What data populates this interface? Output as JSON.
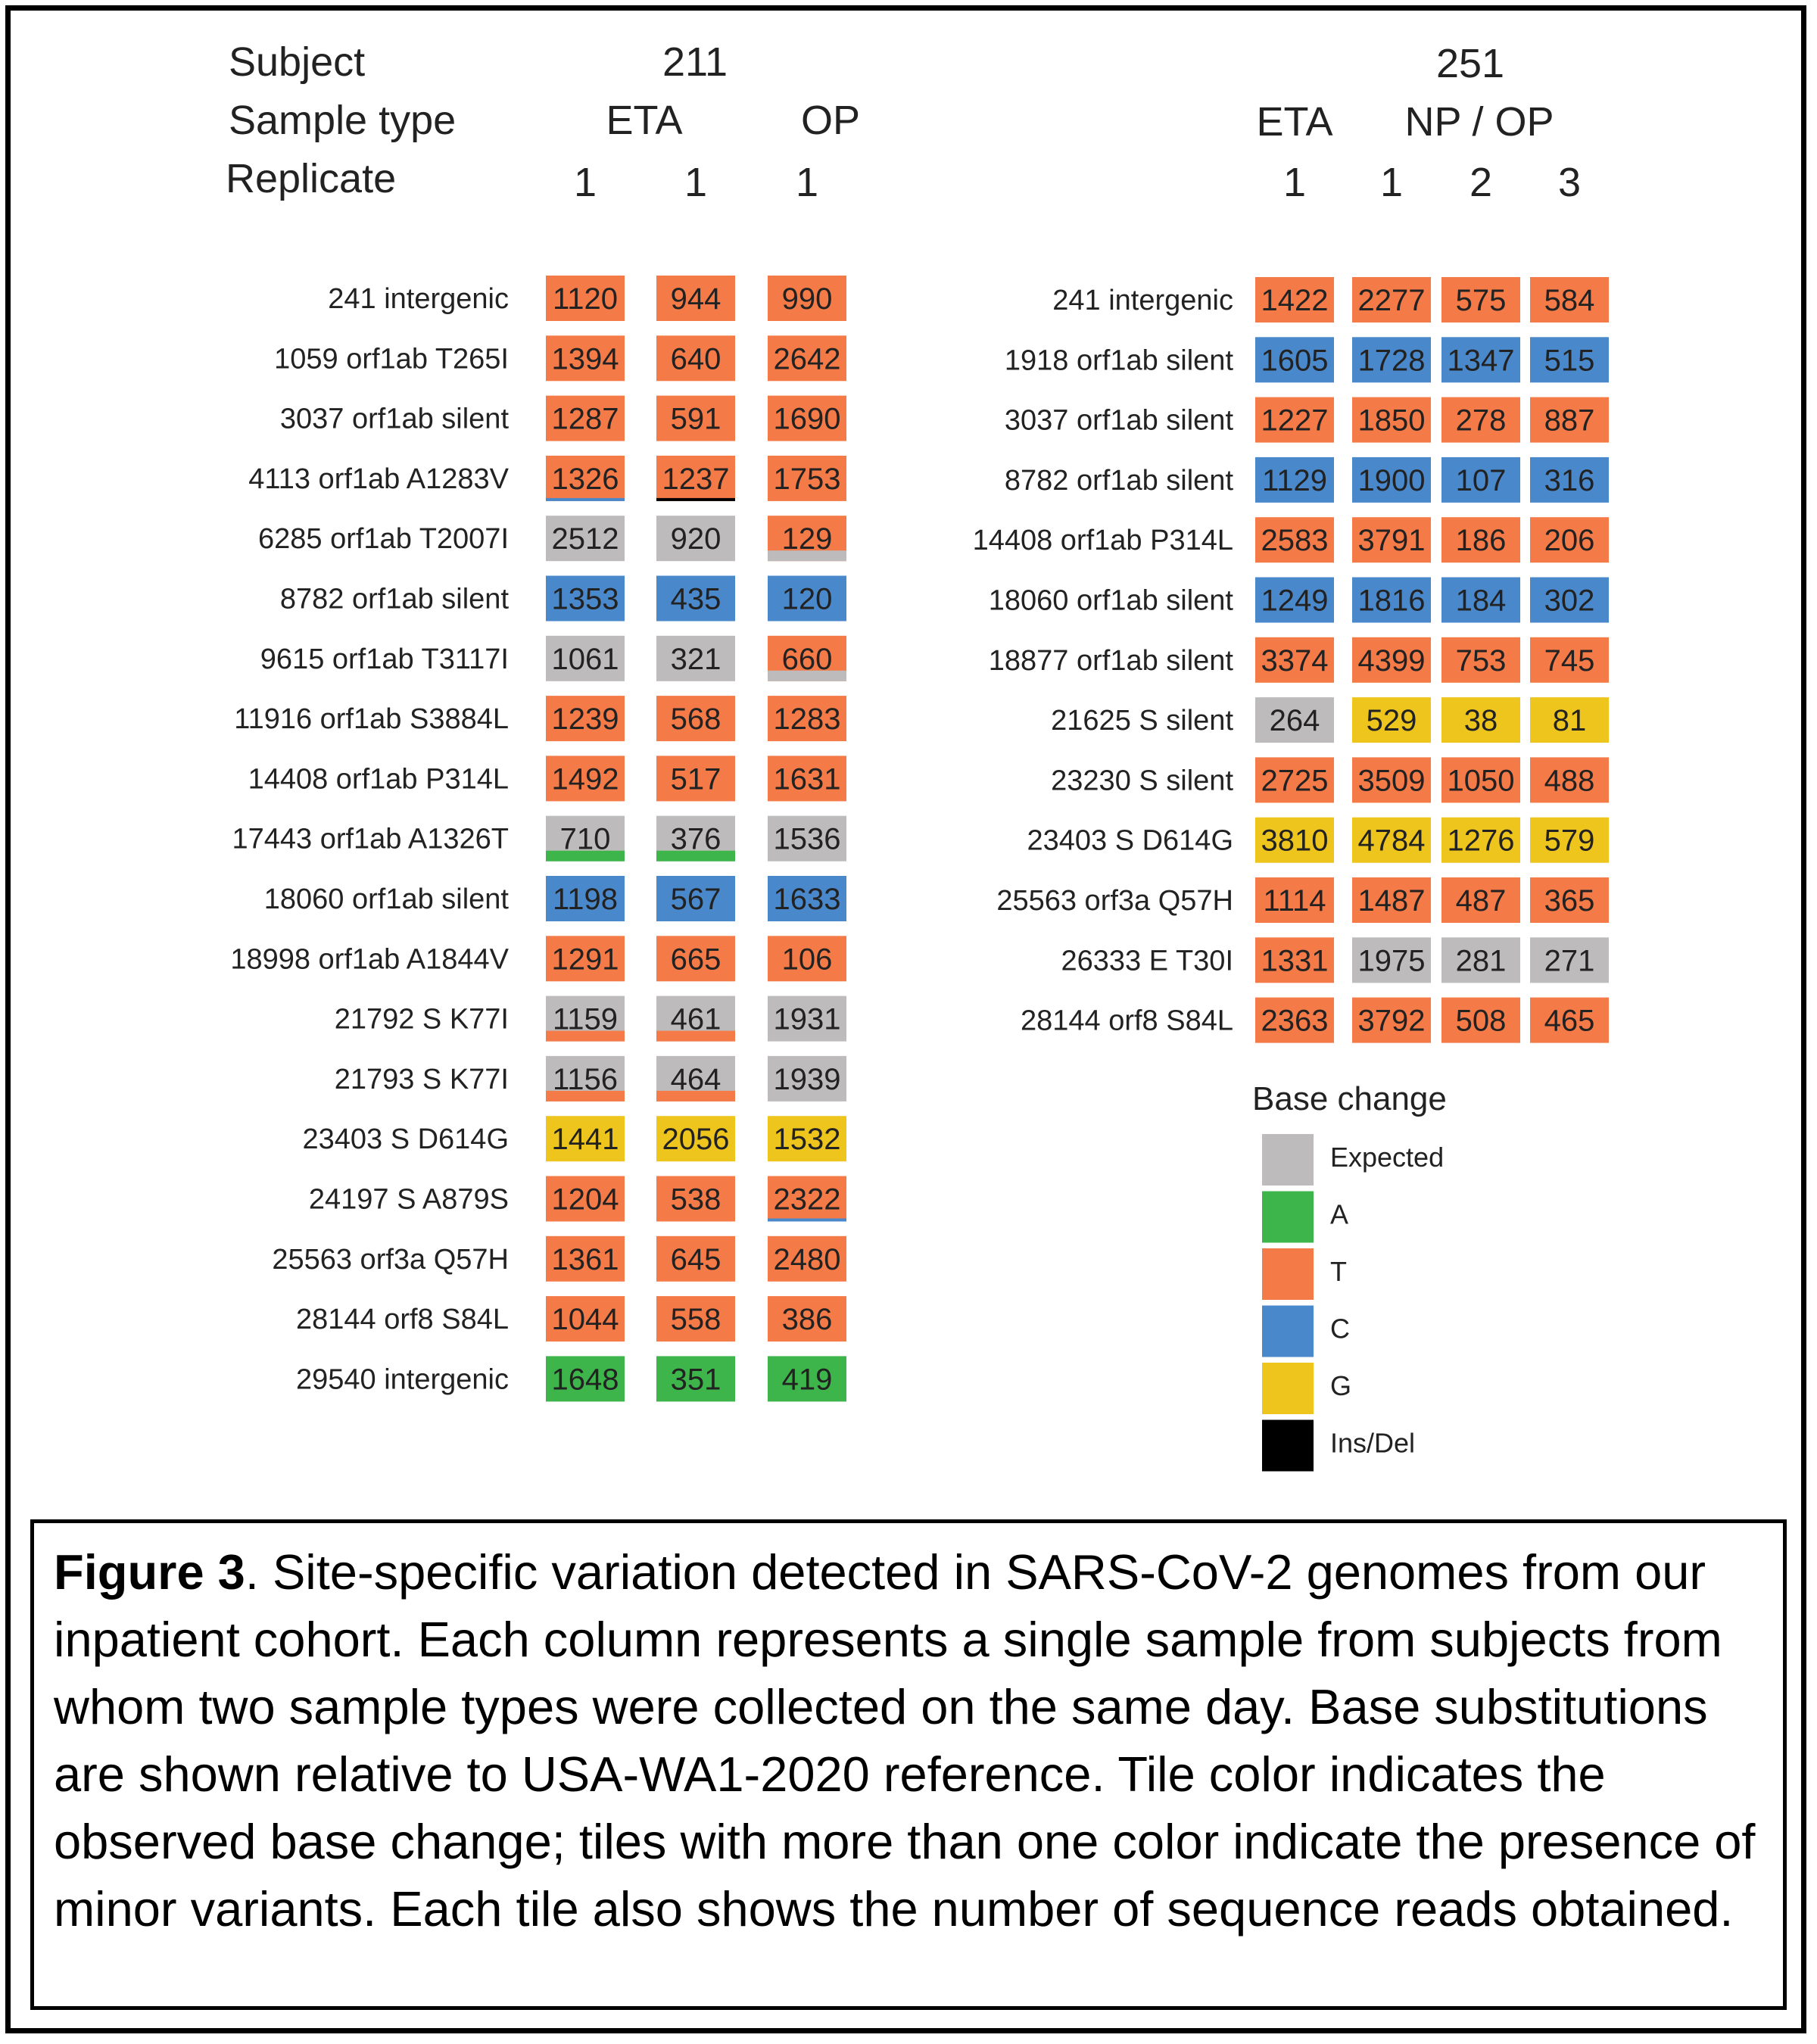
{
  "colors": {
    "Expected": "#bdbbbb",
    "A": "#3db54a",
    "T": "#f47a47",
    "C": "#4a88cc",
    "G": "#eec51c",
    "Ins/Del": "#000000"
  },
  "header_labels": {
    "subject": "Subject",
    "sample_type": "Sample type",
    "replicate": "Replicate"
  },
  "caption": {
    "figure_label": "Figure 3",
    "text": ". Site-specific variation detected in SARS-CoV-2 genomes from our inpatient cohort. Each column represents a single sample from subjects from whom two sample types were collected on the same day. Base substitutions are shown relative to USA-WA1-2020 reference. Tile color indicates the observed base change; tiles with more than one color indicate the presence of minor variants. Each tile also shows the number of sequence reads obtained."
  },
  "chart_data": {
    "type": "heatmap",
    "legend": {
      "title": "Base change",
      "entries": [
        {
          "label": "Expected",
          "color": "#bdbbbb"
        },
        {
          "label": "A",
          "color": "#3db54a"
        },
        {
          "label": "T",
          "color": "#f47a47"
        },
        {
          "label": "C",
          "color": "#4a88cc"
        },
        {
          "label": "G",
          "color": "#eec51c"
        },
        {
          "label": "Ins/Del",
          "color": "#000000"
        }
      ]
    },
    "panels": [
      {
        "subject": "211",
        "sample_types": [
          "ETA",
          "OP"
        ],
        "columns": [
          {
            "sample_type": "ETA",
            "replicate": "1"
          },
          {
            "sample_type": "ETA",
            "replicate": "1"
          },
          {
            "sample_type": "OP",
            "replicate": "1"
          }
        ],
        "rows": [
          {
            "label": "241 intergenic",
            "cells": [
              {
                "reads": "1120",
                "base": "T"
              },
              {
                "reads": "944",
                "base": "T"
              },
              {
                "reads": "990",
                "base": "T"
              }
            ]
          },
          {
            "label": "1059 orf1ab  T265I",
            "cells": [
              {
                "reads": "1394",
                "base": "T"
              },
              {
                "reads": "640",
                "base": "T"
              },
              {
                "reads": "2642",
                "base": "T"
              }
            ]
          },
          {
            "label": "3037 orf1ab  silent",
            "cells": [
              {
                "reads": "1287",
                "base": "T"
              },
              {
                "reads": "591",
                "base": "T"
              },
              {
                "reads": "1690",
                "base": "T"
              }
            ]
          },
          {
            "label": "4113 orf1ab  A1283V",
            "cells": [
              {
                "reads": "1326",
                "base": "T",
                "minor": "C"
              },
              {
                "reads": "1237",
                "base": "T",
                "minor": "Ins/Del"
              },
              {
                "reads": "1753",
                "base": "T"
              }
            ]
          },
          {
            "label": "6285 orf1ab T2007I",
            "cells": [
              {
                "reads": "2512",
                "base": "Expected"
              },
              {
                "reads": "920",
                "base": "Expected"
              },
              {
                "reads": "129",
                "base": "T",
                "minor": "Expected"
              }
            ]
          },
          {
            "label": "8782 orf1ab  silent",
            "cells": [
              {
                "reads": "1353",
                "base": "C"
              },
              {
                "reads": "435",
                "base": "C"
              },
              {
                "reads": "120",
                "base": "C"
              }
            ]
          },
          {
            "label": "9615 orf1ab T3117I",
            "cells": [
              {
                "reads": "1061",
                "base": "Expected"
              },
              {
                "reads": "321",
                "base": "Expected"
              },
              {
                "reads": "660",
                "base": "T",
                "minor": "Expected"
              }
            ]
          },
          {
            "label": "11916 orf1ab  S3884L",
            "cells": [
              {
                "reads": "1239",
                "base": "T"
              },
              {
                "reads": "568",
                "base": "T"
              },
              {
                "reads": "1283",
                "base": "T"
              }
            ]
          },
          {
            "label": "14408 orf1ab  P314L",
            "cells": [
              {
                "reads": "1492",
                "base": "T"
              },
              {
                "reads": "517",
                "base": "T"
              },
              {
                "reads": "1631",
                "base": "T"
              }
            ]
          },
          {
            "label": "17443 orf1ab  A1326T",
            "cells": [
              {
                "reads": "710",
                "base": "Expected",
                "minor": "A"
              },
              {
                "reads": "376",
                "base": "Expected",
                "minor": "A"
              },
              {
                "reads": "1536",
                "base": "Expected"
              }
            ]
          },
          {
            "label": "18060 orf1ab  silent",
            "cells": [
              {
                "reads": "1198",
                "base": "C"
              },
              {
                "reads": "567",
                "base": "C"
              },
              {
                "reads": "1633",
                "base": "C"
              }
            ]
          },
          {
            "label": "18998 orf1ab  A1844V",
            "cells": [
              {
                "reads": "1291",
                "base": "T"
              },
              {
                "reads": "665",
                "base": "T"
              },
              {
                "reads": "106",
                "base": "T"
              }
            ]
          },
          {
            "label": "21792 S  K77I",
            "cells": [
              {
                "reads": "1159",
                "base": "Expected",
                "minor": "T"
              },
              {
                "reads": "461",
                "base": "Expected",
                "minor": "T"
              },
              {
                "reads": "1931",
                "base": "Expected"
              }
            ]
          },
          {
            "label": "21793 S  K77I",
            "cells": [
              {
                "reads": "1156",
                "base": "Expected",
                "minor": "T"
              },
              {
                "reads": "464",
                "base": "Expected",
                "minor": "T"
              },
              {
                "reads": "1939",
                "base": "Expected"
              }
            ]
          },
          {
            "label": "23403 S  D614G",
            "cells": [
              {
                "reads": "1441",
                "base": "G"
              },
              {
                "reads": "2056",
                "base": "G"
              },
              {
                "reads": "1532",
                "base": "G"
              }
            ]
          },
          {
            "label": "24197 S  A879S",
            "cells": [
              {
                "reads": "1204",
                "base": "T"
              },
              {
                "reads": "538",
                "base": "T"
              },
              {
                "reads": "2322",
                "base": "T",
                "minor": "C"
              }
            ]
          },
          {
            "label": "25563 orf3a  Q57H",
            "cells": [
              {
                "reads": "1361",
                "base": "T"
              },
              {
                "reads": "645",
                "base": "T"
              },
              {
                "reads": "2480",
                "base": "T"
              }
            ]
          },
          {
            "label": "28144 orf8  S84L",
            "cells": [
              {
                "reads": "1044",
                "base": "T"
              },
              {
                "reads": "558",
                "base": "T"
              },
              {
                "reads": "386",
                "base": "T"
              }
            ]
          },
          {
            "label": "29540 intergenic",
            "cells": [
              {
                "reads": "1648",
                "base": "A"
              },
              {
                "reads": "351",
                "base": "A"
              },
              {
                "reads": "419",
                "base": "A"
              }
            ]
          }
        ]
      },
      {
        "subject": "251",
        "sample_types": [
          "ETA",
          "NP / OP"
        ],
        "columns": [
          {
            "sample_type": "ETA",
            "replicate": "1"
          },
          {
            "sample_type": "NP / OP",
            "replicate": "1"
          },
          {
            "sample_type": "NP / OP",
            "replicate": "2"
          },
          {
            "sample_type": "NP / OP",
            "replicate": "3"
          }
        ],
        "rows": [
          {
            "label": "241 intergenic",
            "cells": [
              {
                "reads": "1422",
                "base": "T"
              },
              {
                "reads": "2277",
                "base": "T"
              },
              {
                "reads": "575",
                "base": "T"
              },
              {
                "reads": "584",
                "base": "T"
              }
            ]
          },
          {
            "label": "1918 orf1ab silent",
            "cells": [
              {
                "reads": "1605",
                "base": "C"
              },
              {
                "reads": "1728",
                "base": "C"
              },
              {
                "reads": "1347",
                "base": "C"
              },
              {
                "reads": "515",
                "base": "C"
              }
            ]
          },
          {
            "label": "3037 orf1ab silent",
            "cells": [
              {
                "reads": "1227",
                "base": "T"
              },
              {
                "reads": "1850",
                "base": "T"
              },
              {
                "reads": "278",
                "base": "T"
              },
              {
                "reads": "887",
                "base": "T"
              }
            ]
          },
          {
            "label": "8782 orf1ab silent",
            "cells": [
              {
                "reads": "1129",
                "base": "C"
              },
              {
                "reads": "1900",
                "base": "C"
              },
              {
                "reads": "107",
                "base": "C"
              },
              {
                "reads": "316",
                "base": "C"
              }
            ]
          },
          {
            "label": "14408 orf1ab P314L",
            "cells": [
              {
                "reads": "2583",
                "base": "T"
              },
              {
                "reads": "3791",
                "base": "T"
              },
              {
                "reads": "186",
                "base": "T"
              },
              {
                "reads": "206",
                "base": "T"
              }
            ]
          },
          {
            "label": "18060 orf1ab silent",
            "cells": [
              {
                "reads": "1249",
                "base": "C"
              },
              {
                "reads": "1816",
                "base": "C"
              },
              {
                "reads": "184",
                "base": "C"
              },
              {
                "reads": "302",
                "base": "C"
              }
            ]
          },
          {
            "label": "18877 orf1ab silent",
            "cells": [
              {
                "reads": "3374",
                "base": "T"
              },
              {
                "reads": "4399",
                "base": "T"
              },
              {
                "reads": "753",
                "base": "T"
              },
              {
                "reads": "745",
                "base": "T"
              }
            ]
          },
          {
            "label": "21625 S silent",
            "cells": [
              {
                "reads": "264",
                "base": "Expected"
              },
              {
                "reads": "529",
                "base": "G"
              },
              {
                "reads": "38",
                "base": "G"
              },
              {
                "reads": "81",
                "base": "G"
              }
            ]
          },
          {
            "label": "23230 S silent",
            "cells": [
              {
                "reads": "2725",
                "base": "T"
              },
              {
                "reads": "3509",
                "base": "T"
              },
              {
                "reads": "1050",
                "base": "T"
              },
              {
                "reads": "488",
                "base": "T"
              }
            ]
          },
          {
            "label": "23403 S D614G",
            "cells": [
              {
                "reads": "3810",
                "base": "G"
              },
              {
                "reads": "4784",
                "base": "G"
              },
              {
                "reads": "1276",
                "base": "G"
              },
              {
                "reads": "579",
                "base": "G"
              }
            ]
          },
          {
            "label": "25563 orf3a Q57H",
            "cells": [
              {
                "reads": "1114",
                "base": "T"
              },
              {
                "reads": "1487",
                "base": "T"
              },
              {
                "reads": "487",
                "base": "T"
              },
              {
                "reads": "365",
                "base": "T"
              }
            ]
          },
          {
            "label": "26333 E T30I",
            "cells": [
              {
                "reads": "1331",
                "base": "T"
              },
              {
                "reads": "1975",
                "base": "Expected"
              },
              {
                "reads": "281",
                "base": "Expected"
              },
              {
                "reads": "271",
                "base": "Expected"
              }
            ]
          },
          {
            "label": "28144 orf8 S84L",
            "cells": [
              {
                "reads": "2363",
                "base": "T"
              },
              {
                "reads": "3792",
                "base": "T"
              },
              {
                "reads": "508",
                "base": "T"
              },
              {
                "reads": "465",
                "base": "T"
              }
            ]
          }
        ]
      }
    ]
  }
}
